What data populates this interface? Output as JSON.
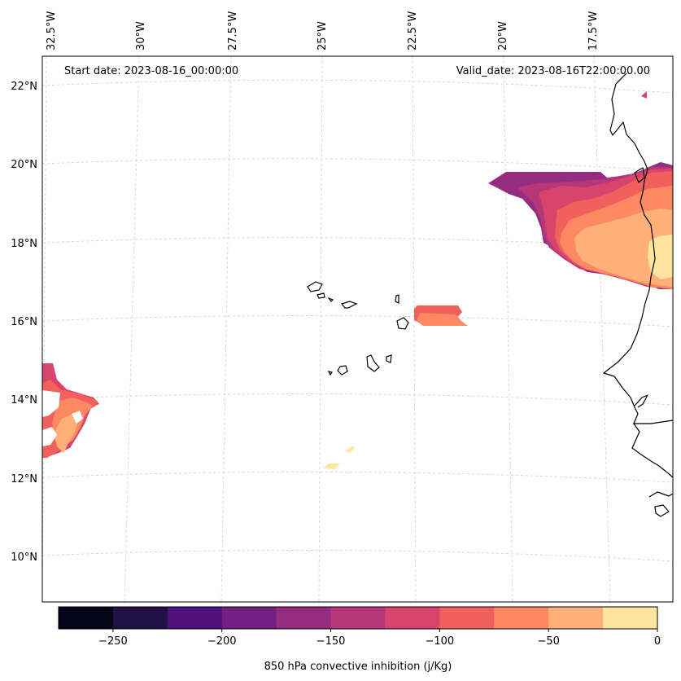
{
  "map": {
    "start_label": "Start date: 2023-08-16_00:00:00",
    "valid_label": "Valid_date: 2023-08-16T22:00:00.00",
    "lon_labels": [
      "32.5°W",
      "30°W",
      "27.5°W",
      "25°W",
      "22.5°W",
      "20°W",
      "17.5°W"
    ],
    "lat_labels": [
      "22°N",
      "20°N",
      "18°N",
      "16°N",
      "14°N",
      "12°N",
      "10°N"
    ],
    "gridline_color": "#cccccc",
    "coastline_color": "#000000"
  },
  "chart_data": {
    "type": "heatmap",
    "title": "",
    "colorbar": {
      "label": "850 hPa convective inhibition (j/Kg)",
      "range": [
        -275,
        0
      ],
      "levels": [
        -275,
        -250,
        -225,
        -200,
        -175,
        -150,
        -125,
        -100,
        -75,
        -50,
        -25,
        0
      ],
      "tick_values": [
        -250,
        -200,
        -150,
        -100,
        -50,
        0
      ],
      "tick_labels": [
        "−250",
        "−200",
        "−150",
        "−100",
        "−50",
        "0"
      ],
      "colors": [
        "#050418",
        "#211044",
        "#4e117b",
        "#721f81",
        "#942c80",
        "#b63779",
        "#d8456c",
        "#f1605d",
        "#fc8961",
        "#feb078",
        "#fee5a0"
      ]
    },
    "regions": [
      "West African coast (14°N–20°N): CIN from -175 near 20°N/21°W to -25 near 17°N/16°W",
      "Near 16°N, 21°W: CIN -100 to -50",
      "Near 14°N, 33°W: CIN -125 to -25",
      "Near 12.5°N, 24.5°W: CIN -25 to 0"
    ]
  }
}
